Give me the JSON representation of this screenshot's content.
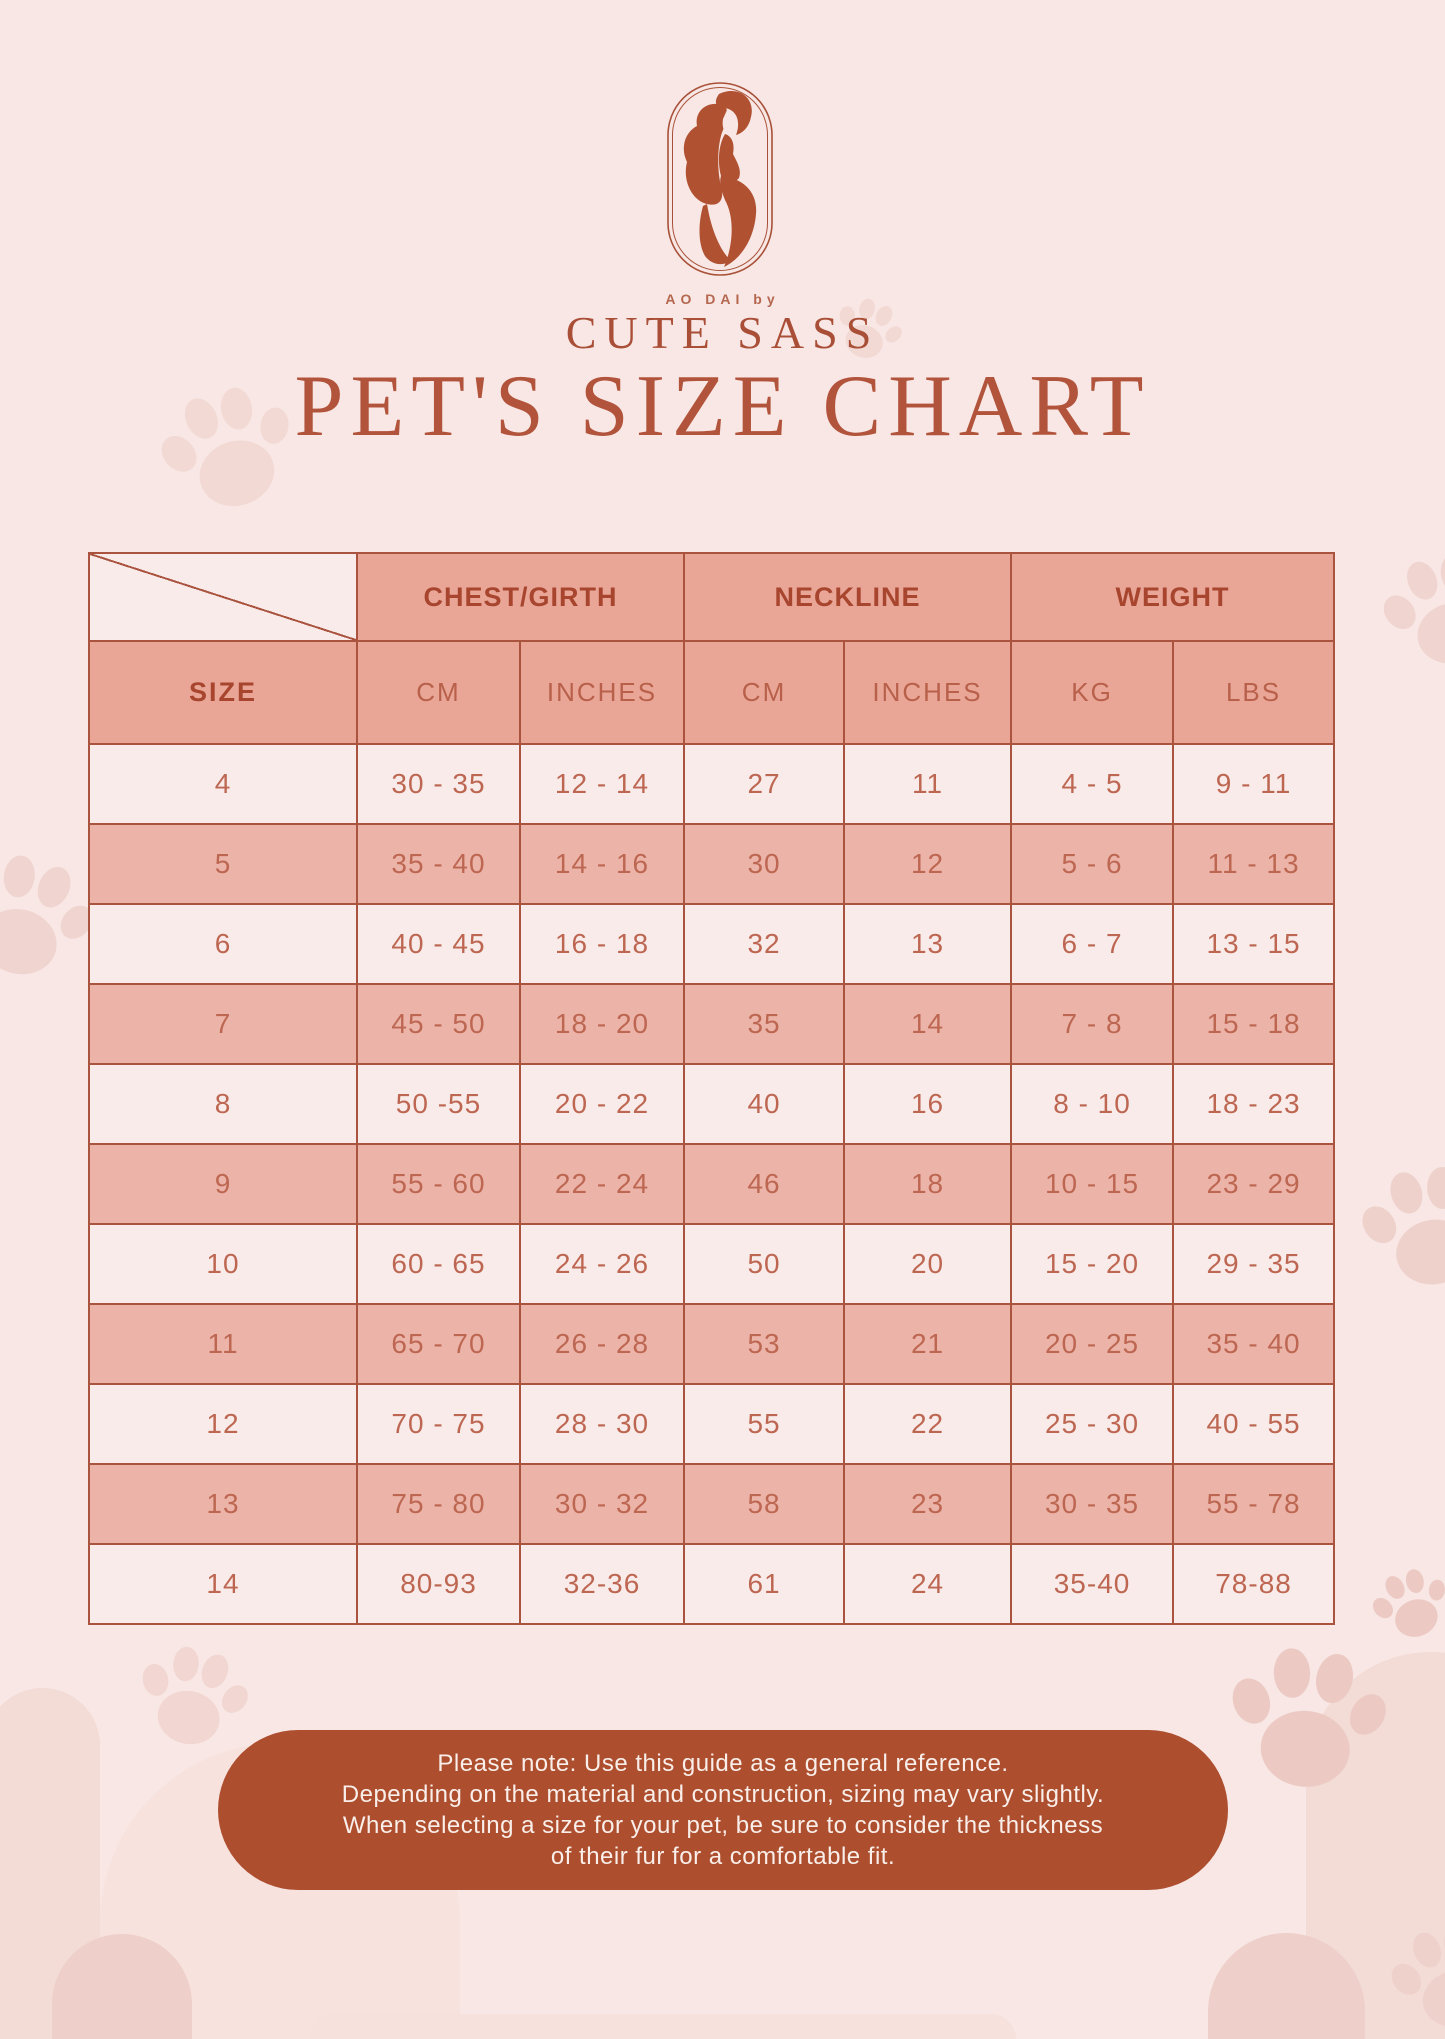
{
  "brand": {
    "tagline": "AO DAI by",
    "name": "CUTE SASS",
    "logo": "woman-in-ao-dai-emblem"
  },
  "title": "PET'S SIZE CHART",
  "table": {
    "column_groups": [
      {
        "label": "CHEST/GIRTH"
      },
      {
        "label": "NECKLINE"
      },
      {
        "label": "WEIGHT"
      }
    ],
    "sub_headers": [
      "SIZE",
      "CM",
      "INCHES",
      "CM",
      "INCHES",
      "KG",
      "LBS"
    ],
    "rows": [
      [
        "4",
        "30 - 35",
        "12 - 14",
        "27",
        "11",
        "4 - 5",
        "9 - 11"
      ],
      [
        "5",
        "35 - 40",
        "14 - 16",
        "30",
        "12",
        "5 - 6",
        "11 - 13"
      ],
      [
        "6",
        "40 - 45",
        "16 - 18",
        "32",
        "13",
        "6 - 7",
        "13 - 15"
      ],
      [
        "7",
        "45 - 50",
        "18 - 20",
        "35",
        "14",
        "7 - 8",
        "15 - 18"
      ],
      [
        "8",
        "50 -55",
        "20 - 22",
        "40",
        "16",
        "8 - 10",
        "18 - 23"
      ],
      [
        "9",
        "55 - 60",
        "22 - 24",
        "46",
        "18",
        "10 - 15",
        "23 - 29"
      ],
      [
        "10",
        "60 - 65",
        "24 - 26",
        "50",
        "20",
        "15 - 20",
        "29 - 35"
      ],
      [
        "11",
        "65 - 70",
        "26 - 28",
        "53",
        "21",
        "20 - 25",
        "35 - 40"
      ],
      [
        "12",
        "70 - 75",
        "28 - 30",
        "55",
        "22",
        "25 - 30",
        "40 - 55"
      ],
      [
        "13",
        "75 - 80",
        "30 - 32",
        "58",
        "23",
        "30 - 35",
        "55 - 78"
      ],
      [
        "14",
        "80-93",
        "32-36",
        "61",
        "24",
        "35-40",
        "78-88"
      ]
    ]
  },
  "note": {
    "lines": [
      "Please note: Use this guide as a general reference.",
      "Depending on the material and construction, sizing may vary slightly.",
      "When selecting a size for your pet, be sure to consider the thickness",
      "of their fur for a comfortable fit."
    ]
  },
  "colors": {
    "background": "#f8e7e5",
    "terracotta": "#b2543b",
    "table_border": "#aa5440",
    "header_fill": "#e9a697",
    "alt_row_fill": "#ecb4a8",
    "light_row_fill": "#f9ebe9",
    "note_fill": "#ad4e2e",
    "note_text": "#f9eee9",
    "deco_pink": "#f2d9d4",
    "deco_paw": "#edccc5"
  }
}
